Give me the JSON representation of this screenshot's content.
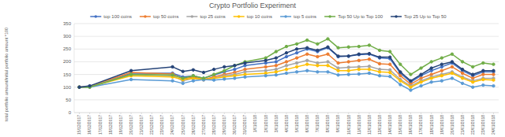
{
  "chart_data": {
    "type": "line",
    "title": "Crypto Portfolio Experiment",
    "y_label": "total portfolio amount/initial portfolio amount *100",
    "categories": [
      "15/12/2017",
      "16/12/2017",
      "17/12/2017",
      "18/12/2017",
      "19/12/2017",
      "20/12/2017",
      "21/12/2017",
      "22/12/2017",
      "23/12/2017",
      "24/12/2017",
      "25/12/2017",
      "26/12/2017",
      "27/12/2017",
      "28/12/2017",
      "29/12/2017",
      "30/12/2017",
      "31/12/2017",
      "1/01/2018",
      "2/01/2018",
      "3/01/2018",
      "4/01/2018",
      "5/01/2018",
      "6/01/2018",
      "7/01/2018",
      "8/01/2018",
      "9/01/2018",
      "10/01/2018",
      "11/01/2018",
      "12/01/2018",
      "13/01/2018",
      "14/01/2018",
      "15/01/2018",
      "16/01/2018",
      "17/01/2018",
      "18/01/2018",
      "19/01/2018",
      "20/01/2018",
      "21/01/2018",
      "22/01/2018",
      "23/01/2018",
      "24/01/2018"
    ],
    "series": [
      {
        "name": "top 100 coins",
        "color": "#4472c4",
        "values": [
          100,
          103,
          null,
          null,
          null,
          155,
          null,
          null,
          null,
          155,
          140,
          145,
          135,
          148,
          160,
          170,
          185,
          null,
          195,
          200,
          220,
          235,
          250,
          240,
          255,
          220,
          222,
          228,
          230,
          215,
          212,
          155,
          120,
          145,
          165,
          180,
          195,
          165,
          145,
          160,
          160
        ]
      },
      {
        "name": "top 50 coins",
        "color": "#ed7d31",
        "values": [
          100,
          103,
          null,
          null,
          null,
          158,
          null,
          null,
          null,
          152,
          132,
          140,
          130,
          140,
          150,
          158,
          170,
          null,
          180,
          185,
          200,
          215,
          230,
          220,
          230,
          195,
          200,
          205,
          210,
          192,
          190,
          145,
          112,
          135,
          150,
          165,
          180,
          155,
          135,
          150,
          150
        ]
      },
      {
        "name": "top 25 coins",
        "color": "#a5a5a5",
        "values": [
          100,
          102,
          null,
          null,
          null,
          150,
          null,
          null,
          null,
          145,
          125,
          135,
          128,
          135,
          145,
          150,
          160,
          null,
          165,
          170,
          185,
          195,
          205,
          195,
          200,
          175,
          178,
          180,
          182,
          170,
          168,
          130,
          105,
          125,
          140,
          150,
          160,
          140,
          125,
          135,
          135
        ]
      },
      {
        "name": "top 10 coins",
        "color": "#ffc000",
        "values": [
          100,
          101,
          null,
          null,
          null,
          145,
          null,
          null,
          null,
          140,
          130,
          135,
          132,
          135,
          140,
          145,
          150,
          null,
          155,
          160,
          170,
          180,
          190,
          185,
          185,
          165,
          165,
          170,
          170,
          160,
          158,
          125,
          100,
          120,
          135,
          145,
          155,
          135,
          120,
          130,
          128
        ]
      },
      {
        "name": "top 5 coins",
        "color": "#5b9bd5",
        "values": [
          100,
          100,
          null,
          null,
          null,
          130,
          null,
          null,
          null,
          125,
          115,
          125,
          130,
          128,
          132,
          135,
          140,
          null,
          145,
          148,
          155,
          160,
          165,
          160,
          160,
          148,
          150,
          152,
          155,
          145,
          142,
          110,
          88,
          105,
          120,
          125,
          135,
          115,
          100,
          108,
          105
        ]
      },
      {
        "name": "Top 50 Up to Top 100",
        "color": "#70ad47",
        "values": [
          100,
          100,
          null,
          null,
          null,
          150,
          null,
          null,
          null,
          148,
          135,
          145,
          135,
          150,
          165,
          185,
          200,
          null,
          215,
          240,
          260,
          270,
          285,
          270,
          290,
          255,
          258,
          260,
          265,
          245,
          240,
          190,
          150,
          175,
          200,
          215,
          230,
          200,
          180,
          195,
          190
        ]
      },
      {
        "name": "Top 25 Up to Top 50",
        "color": "#264478",
        "values": [
          100,
          105,
          null,
          null,
          null,
          165,
          null,
          null,
          null,
          180,
          162,
          168,
          158,
          170,
          180,
          185,
          195,
          null,
          205,
          215,
          235,
          250,
          255,
          245,
          258,
          222,
          222,
          230,
          232,
          218,
          218,
          160,
          125,
          150,
          175,
          190,
          200,
          170,
          150,
          165,
          165
        ]
      }
    ],
    "ylim": [
      0,
      350
    ],
    "yticks": [
      0,
      50,
      100,
      150,
      200,
      250,
      300,
      350
    ],
    "grid": true,
    "legend": "top",
    "marker": "circle"
  }
}
